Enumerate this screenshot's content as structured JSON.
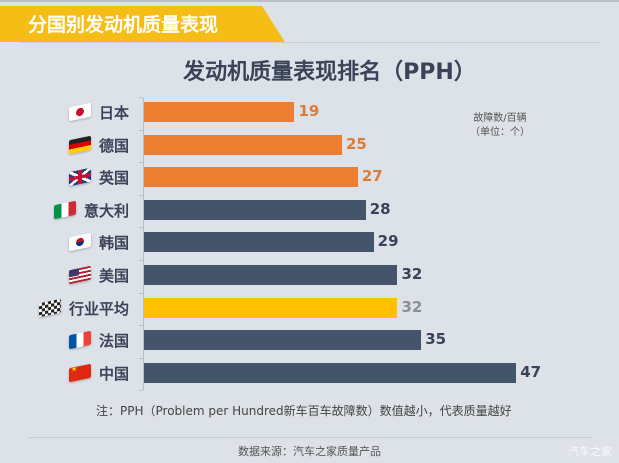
{
  "banner": {
    "title": "分国别发动机质量表现"
  },
  "chart": {
    "title": "发动机质量表现排名（PPH）",
    "unit_line1": "故障数/百辆",
    "unit_line2": "（单位：个）"
  },
  "colors": {
    "best": "#ed7d31",
    "normal": "#44546a",
    "average": "#ffc000",
    "banner": "#f6bd16",
    "background": "#dde1e8"
  },
  "rows": [
    {
      "label": "日本",
      "value": "19",
      "flag": "japan-flag-icon",
      "group": "best"
    },
    {
      "label": "德国",
      "value": "25",
      "flag": "germany-flag-icon",
      "group": "best"
    },
    {
      "label": "英国",
      "value": "27",
      "flag": "uk-flag-icon",
      "group": "best"
    },
    {
      "label": "意大利",
      "value": "28",
      "flag": "italy-flag-icon",
      "group": "normal"
    },
    {
      "label": "韩国",
      "value": "29",
      "flag": "korea-flag-icon",
      "group": "normal"
    },
    {
      "label": "美国",
      "value": "32",
      "flag": "usa-flag-icon",
      "group": "normal"
    },
    {
      "label": "行业平均",
      "value": "32",
      "flag": "checkered-flag-icon",
      "group": "average"
    },
    {
      "label": "法国",
      "value": "35",
      "flag": "france-flag-icon",
      "group": "normal"
    },
    {
      "label": "中国",
      "value": "47",
      "flag": "china-flag-icon",
      "group": "normal"
    }
  ],
  "footer": {
    "note": "注：PPH（Problem per Hundred新车百车故障数）数值越小，代表质量越好",
    "source": "数据来源：汽车之家质量产品",
    "watermark": "汽车之家"
  },
  "chart_data": {
    "type": "bar",
    "orientation": "horizontal",
    "title": "发动机质量表现排名（PPH）",
    "subtitle": "分国别发动机质量表现",
    "unit": "故障数/百辆（单位：个）",
    "categories": [
      "日本",
      "德国",
      "英国",
      "意大利",
      "韩国",
      "美国",
      "行业平均",
      "法国",
      "中国"
    ],
    "values": [
      19,
      25,
      27,
      28,
      29,
      32,
      32,
      35,
      47
    ],
    "bar_colors": [
      "#ed7d31",
      "#ed7d31",
      "#ed7d31",
      "#44546a",
      "#44546a",
      "#44546a",
      "#ffc000",
      "#44546a",
      "#44546a"
    ],
    "xlabel": "",
    "ylabel": "",
    "xlim": [
      0,
      50
    ],
    "grid": false,
    "data_labels": true,
    "legend": null,
    "annotation": "注：PPH（Problem per Hundred新车百车故障数）数值越小，代表质量越好",
    "source": "数据来源：汽车之家质量产品"
  }
}
